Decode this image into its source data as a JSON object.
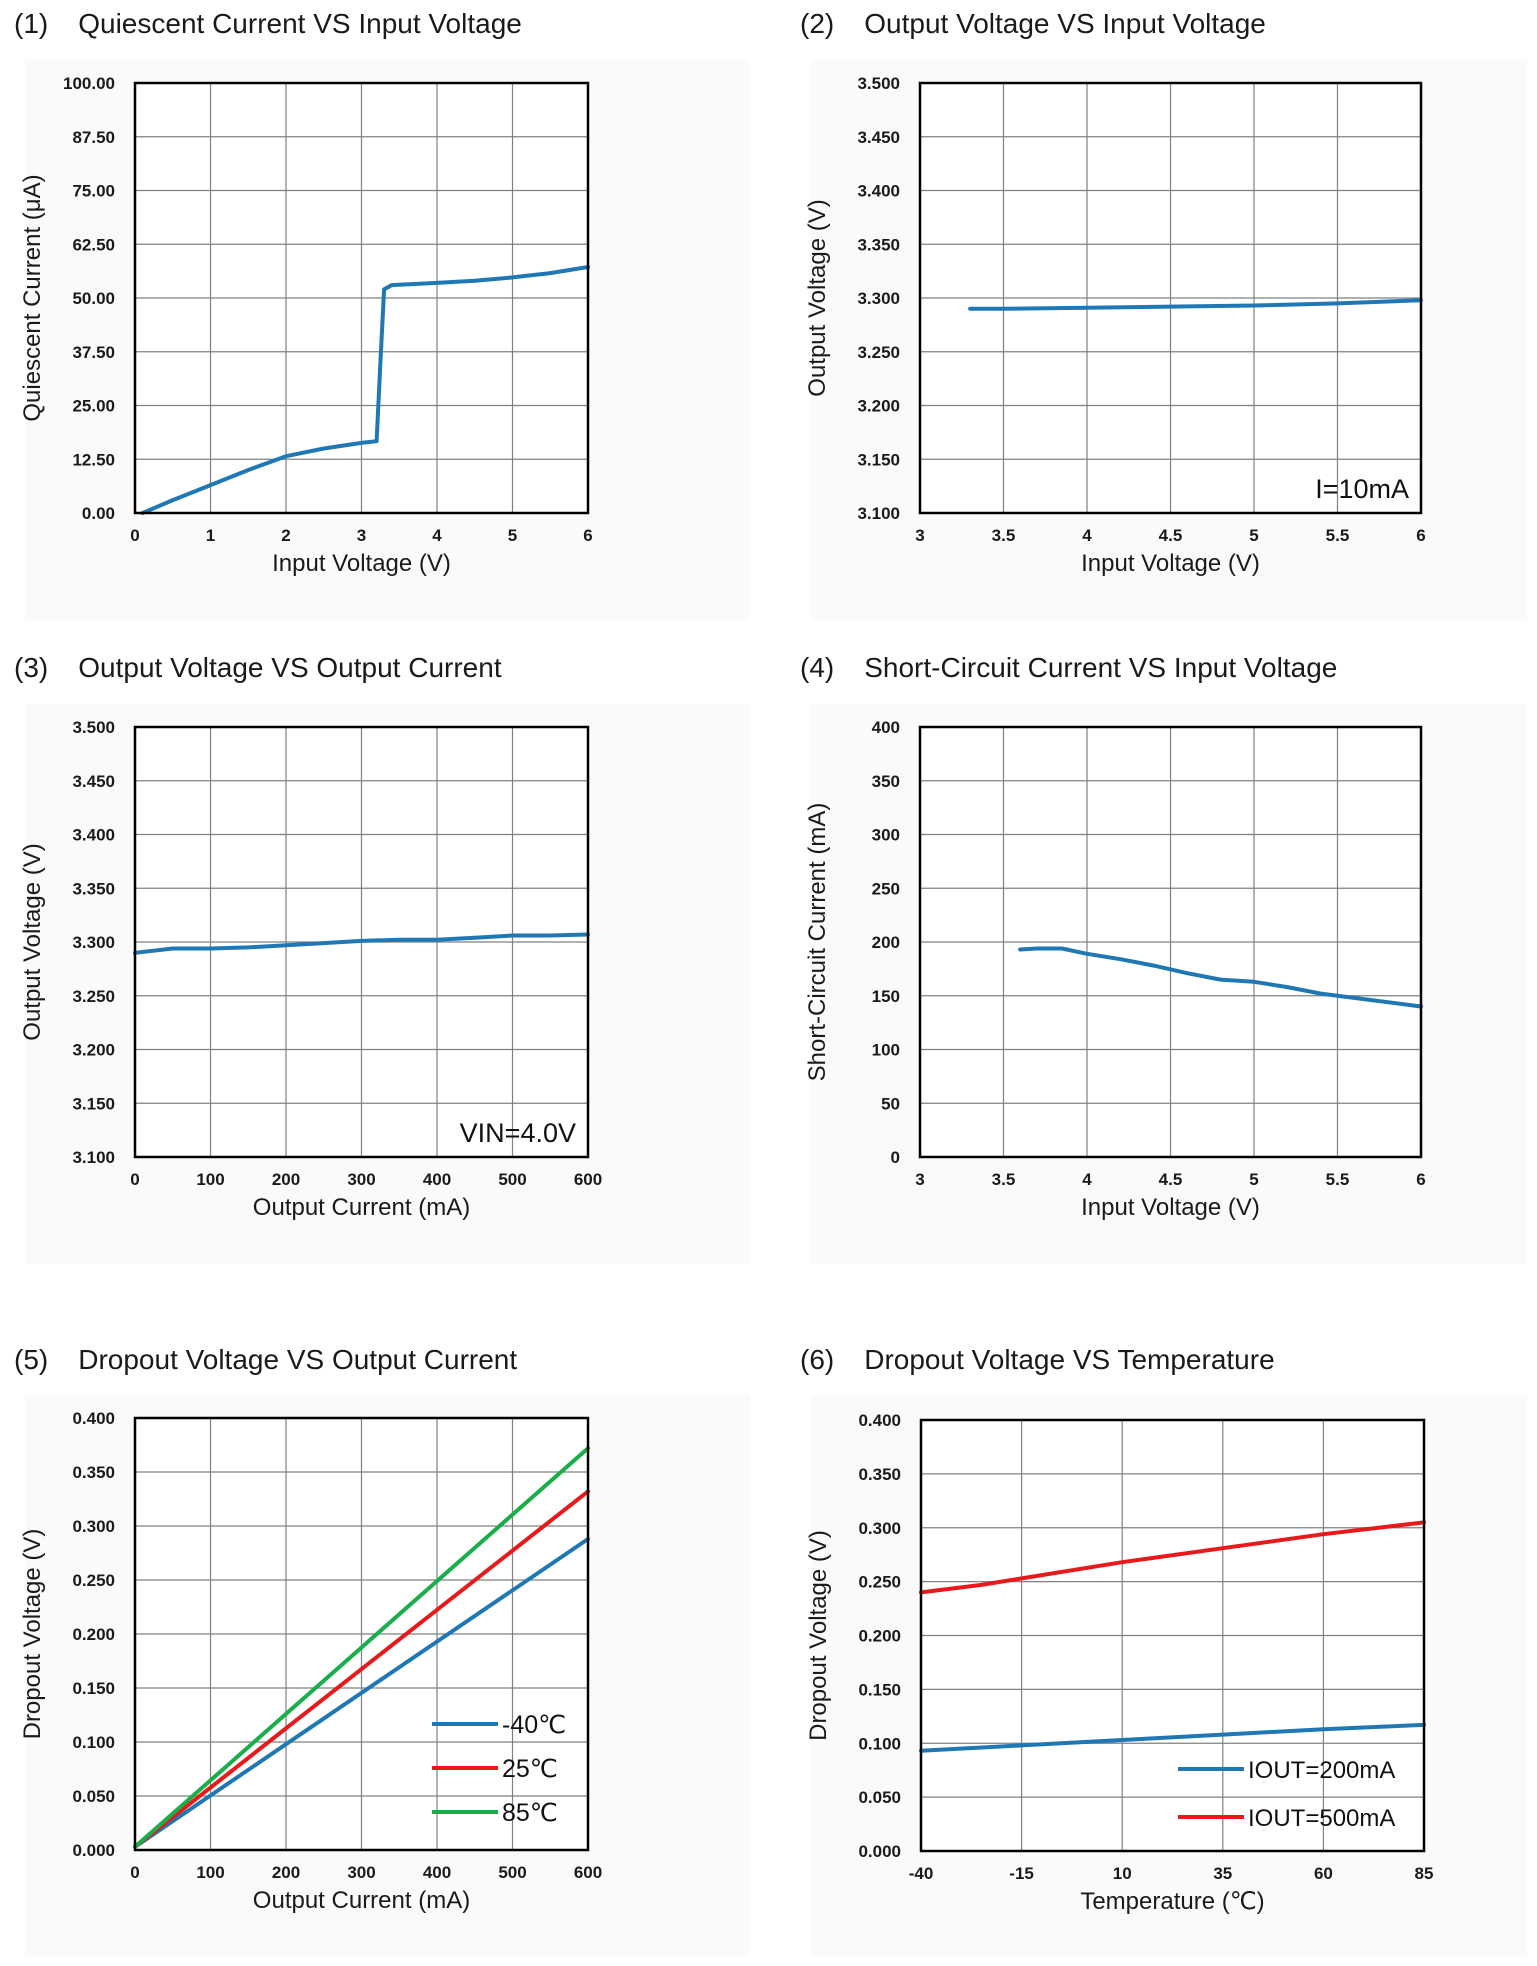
{
  "chart_data": [
    {
      "type": "line",
      "panel_number": "(1)",
      "title": "Quiescent Current VS Input Voltage",
      "xlabel": "Input Voltage (V)",
      "ylabel": "Quiescent Current  (μA)",
      "xlim": [
        0,
        6
      ],
      "ylim": [
        0,
        100
      ],
      "xticks": [
        "0",
        "1",
        "2",
        "3",
        "4",
        "5",
        "6"
      ],
      "yticks": [
        "0.00",
        "12.50",
        "25.00",
        "37.50",
        "50.00",
        "62.50",
        "75.00",
        "87.50",
        "100.00"
      ],
      "grid": true,
      "annotation": "",
      "series": [
        {
          "name": "",
          "color": "#1f77b4",
          "points": [
            [
              0.1,
              0
            ],
            [
              0.5,
              3
            ],
            [
              1.0,
              6.5
            ],
            [
              1.5,
              10
            ],
            [
              2.0,
              13.2
            ],
            [
              2.5,
              15
            ],
            [
              3.0,
              16.3
            ],
            [
              3.2,
              16.7
            ],
            [
              3.25,
              35
            ],
            [
              3.3,
              52
            ],
            [
              3.4,
              53
            ],
            [
              4.0,
              53.5
            ],
            [
              4.5,
              54
            ],
            [
              5.0,
              54.8
            ],
            [
              5.5,
              55.8
            ],
            [
              6.0,
              57.2
            ]
          ]
        }
      ]
    },
    {
      "type": "line",
      "panel_number": "(2)",
      "title": "Output Voltage VS Input Voltage",
      "xlabel": "Input Voltage (V)",
      "ylabel": "Output Voltage (V)",
      "xlim": [
        3,
        6
      ],
      "ylim": [
        3.1,
        3.5
      ],
      "xticks": [
        "3",
        "3.5",
        "4",
        "4.5",
        "5",
        "5.5",
        "6"
      ],
      "yticks": [
        "3.100",
        "3.150",
        "3.200",
        "3.250",
        "3.300",
        "3.350",
        "3.400",
        "3.450",
        "3.500"
      ],
      "grid": true,
      "annotation": "I=10mA",
      "series": [
        {
          "name": "",
          "color": "#1f77b4",
          "points": [
            [
              3.3,
              3.29
            ],
            [
              3.5,
              3.29
            ],
            [
              4.0,
              3.291
            ],
            [
              4.5,
              3.292
            ],
            [
              5.0,
              3.293
            ],
            [
              5.5,
              3.295
            ],
            [
              6.0,
              3.298
            ]
          ]
        }
      ]
    },
    {
      "type": "line",
      "panel_number": "(3)",
      "title": "Output Voltage VS Output Current",
      "xlabel": "Output Current  (mA)",
      "ylabel": "Output Voltage (V)",
      "xlim": [
        0,
        600
      ],
      "ylim": [
        3.1,
        3.5
      ],
      "xticks": [
        "0",
        "100",
        "200",
        "300",
        "400",
        "500",
        "600"
      ],
      "yticks": [
        "3.100",
        "3.150",
        "3.200",
        "3.250",
        "3.300",
        "3.350",
        "3.400",
        "3.450",
        "3.500"
      ],
      "grid": true,
      "annotation": "VIN=4.0V",
      "series": [
        {
          "name": "",
          "color": "#1f77b4",
          "points": [
            [
              0,
              3.29
            ],
            [
              50,
              3.294
            ],
            [
              100,
              3.294
            ],
            [
              150,
              3.295
            ],
            [
              200,
              3.297
            ],
            [
              250,
              3.299
            ],
            [
              300,
              3.301
            ],
            [
              350,
              3.302
            ],
            [
              400,
              3.302
            ],
            [
              450,
              3.304
            ],
            [
              500,
              3.306
            ],
            [
              550,
              3.306
            ],
            [
              600,
              3.307
            ]
          ]
        }
      ]
    },
    {
      "type": "line",
      "panel_number": "(4)",
      "title": "Short-Circuit Current VS Input Voltage",
      "xlabel": "Input Voltage (V)",
      "ylabel": "Short-Circuit Current (mA)",
      "xlim": [
        3,
        6
      ],
      "ylim": [
        0,
        400
      ],
      "xticks": [
        "3",
        "3.5",
        "4",
        "4.5",
        "5",
        "5.5",
        "6"
      ],
      "yticks": [
        "0",
        "50",
        "100",
        "150",
        "200",
        "250",
        "300",
        "350",
        "400"
      ],
      "grid": true,
      "annotation": "",
      "series": [
        {
          "name": "",
          "color": "#1f77b4",
          "points": [
            [
              3.6,
              193
            ],
            [
              3.7,
              194
            ],
            [
              3.85,
              194
            ],
            [
              4.0,
              189
            ],
            [
              4.2,
              184
            ],
            [
              4.4,
              178
            ],
            [
              4.6,
              171
            ],
            [
              4.8,
              165
            ],
            [
              5.0,
              163
            ],
            [
              5.2,
              158
            ],
            [
              5.4,
              152
            ],
            [
              5.6,
              148
            ],
            [
              5.8,
              144
            ],
            [
              6.0,
              140
            ]
          ]
        }
      ]
    },
    {
      "type": "line",
      "panel_number": "(5)",
      "title": "Dropout Voltage VS Output Current",
      "xlabel": "Output Current (mA)",
      "ylabel": "Dropout Voltage (V)",
      "xlim": [
        0,
        600
      ],
      "ylim": [
        0,
        0.4
      ],
      "xticks": [
        "0",
        "100",
        "200",
        "300",
        "400",
        "500",
        "600"
      ],
      "yticks": [
        "0.000",
        "0.050",
        "0.100",
        "0.150",
        "0.200",
        "0.250",
        "0.300",
        "0.350",
        "0.400"
      ],
      "grid": true,
      "annotation": "",
      "legend_position": "bottom-right",
      "series": [
        {
          "name": "-40℃",
          "color": "#1f77b4",
          "points": [
            [
              0,
              0.003
            ],
            [
              600,
              0.288
            ]
          ]
        },
        {
          "name": "25℃",
          "color": "#e8191b",
          "points": [
            [
              0,
              0.003
            ],
            [
              600,
              0.332
            ]
          ]
        },
        {
          "name": "85℃",
          "color": "#1aae4a",
          "points": [
            [
              0,
              0.003
            ],
            [
              600,
              0.372
            ]
          ]
        }
      ]
    },
    {
      "type": "line",
      "panel_number": "(6)",
      "title": "Dropout Voltage VS Temperature",
      "xlabel": "Temperature  (℃)",
      "ylabel": "Dropout  Voltage (V)",
      "xlim": [
        -40,
        85
      ],
      "ylim": [
        0,
        0.4
      ],
      "xticks": [
        "-40",
        "-15",
        "10",
        "35",
        "60",
        "85"
      ],
      "yticks": [
        "0.000",
        "0.050",
        "0.100",
        "0.150",
        "0.200",
        "0.250",
        "0.300",
        "0.350",
        "0.400"
      ],
      "grid": true,
      "annotation": "",
      "legend_position": "bottom-right",
      "series": [
        {
          "name": "IOUT=200mA",
          "color": "#1f77b4",
          "points": [
            [
              -40,
              0.093
            ],
            [
              -15,
              0.098
            ],
            [
              10,
              0.103
            ],
            [
              35,
              0.108
            ],
            [
              60,
              0.113
            ],
            [
              85,
              0.117
            ]
          ]
        },
        {
          "name": "IOUT=500mA",
          "color": "#e8191b",
          "points": [
            [
              -40,
              0.24
            ],
            [
              -25,
              0.247
            ],
            [
              -15,
              0.253
            ],
            [
              10,
              0.268
            ],
            [
              35,
              0.281
            ],
            [
              60,
              0.294
            ],
            [
              85,
              0.305
            ]
          ]
        }
      ]
    }
  ]
}
